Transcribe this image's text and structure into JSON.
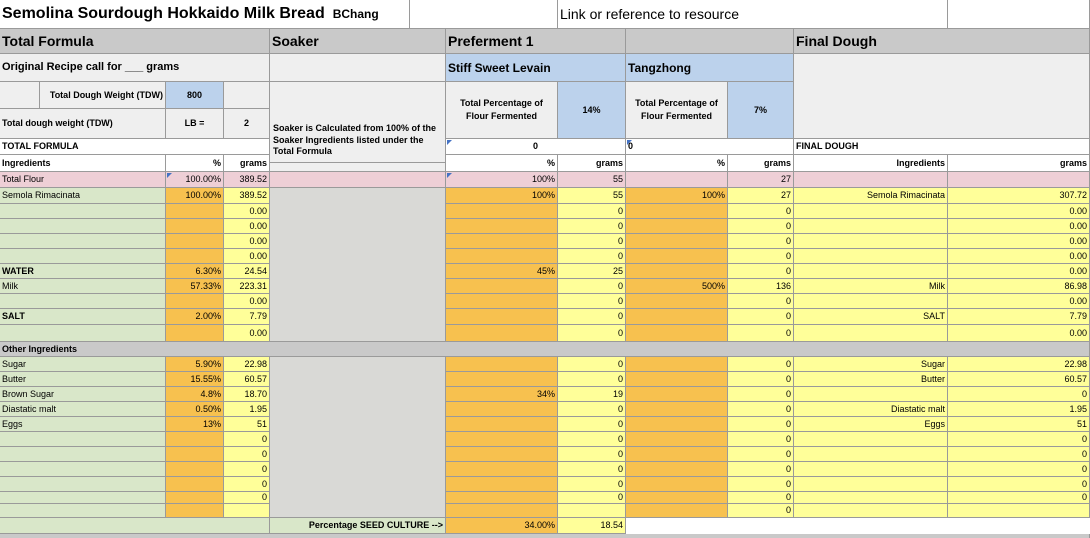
{
  "header": {
    "title": "Semolina Sourdough Hokkaido Milk Bread",
    "author": "BChang",
    "link_label": "Link or reference to resource"
  },
  "sections": {
    "total_formula": "Total Formula",
    "soaker": "Soaker",
    "preferment": "Preferment 1",
    "final_dough": "Final Dough"
  },
  "labels": {
    "original_recipe": "Original Recipe call for ___ grams",
    "stiff_levain": "Stiff Sweet Levain",
    "tangzhong": "Tangzhong",
    "tdw_label": "Total Dough Weight (TDW)",
    "tdw_value": "800",
    "tdw_lb_label": "Total dough weight (TDW)",
    "lb_eq": "LB =",
    "lb_value": "2",
    "pct_flour_fermented": "Total Percentage of Flour Fermented",
    "levain_pct": "14%",
    "tangzhong_pct": "7%",
    "soaker_note": "Soaker is Calculated from 100% of the Soaker Ingredients listed under the Total Formula",
    "total_formula_caps": "TOTAL FORMULA",
    "levain_zero": "0",
    "tangzhong_zero": "0",
    "final_dough_caps": "FINAL DOUGH",
    "ingredients": "Ingredients",
    "pct": "%",
    "grams": "grams",
    "other_ingredients": "Other Ingredients",
    "seed_culture": "Percentage SEED CULTURE  -->",
    "seed_pct": "34.00%",
    "seed_grams": "18.54"
  },
  "rows": [
    {
      "name": "Total Flour",
      "tf_pct": "100.00%",
      "tf_g": "389.52",
      "pf_pct": "100%",
      "pf_g": "55",
      "tz_pct": "",
      "tz_g": "27",
      "fd_name": "",
      "fd_g": ""
    },
    {
      "name": "Semola Rimacinata",
      "tf_pct": "100.00%",
      "tf_g": "389.52",
      "pf_pct": "100%",
      "pf_g": "55",
      "tz_pct": "100%",
      "tz_g": "27",
      "fd_name": "Semola Rimacinata",
      "fd_g": "307.72"
    },
    {
      "name": "",
      "tf_pct": "",
      "tf_g": "0.00",
      "pf_pct": "",
      "pf_g": "0",
      "tz_pct": "",
      "tz_g": "0",
      "fd_name": "",
      "fd_g": "0.00"
    },
    {
      "name": "",
      "tf_pct": "",
      "tf_g": "0.00",
      "pf_pct": "",
      "pf_g": "0",
      "tz_pct": "",
      "tz_g": "0",
      "fd_name": "",
      "fd_g": "0.00"
    },
    {
      "name": "",
      "tf_pct": "",
      "tf_g": "0.00",
      "pf_pct": "",
      "pf_g": "0",
      "tz_pct": "",
      "tz_g": "0",
      "fd_name": "",
      "fd_g": "0.00"
    },
    {
      "name": "",
      "tf_pct": "",
      "tf_g": "0.00",
      "pf_pct": "",
      "pf_g": "0",
      "tz_pct": "",
      "tz_g": "0",
      "fd_name": "",
      "fd_g": "0.00"
    },
    {
      "name": "WATER",
      "tf_pct": "6.30%",
      "tf_g": "24.54",
      "pf_pct": "45%",
      "pf_g": "25",
      "tz_pct": "",
      "tz_g": "0",
      "fd_name": "",
      "fd_g": "0.00"
    },
    {
      "name": "Milk",
      "tf_pct": "57.33%",
      "tf_g": "223.31",
      "pf_pct": "",
      "pf_g": "0",
      "tz_pct": "500%",
      "tz_g": "136",
      "fd_name": "Milk",
      "fd_g": "86.98"
    },
    {
      "name": "",
      "tf_pct": "",
      "tf_g": "0.00",
      "pf_pct": "",
      "pf_g": "0",
      "tz_pct": "",
      "tz_g": "0",
      "fd_name": "",
      "fd_g": "0.00"
    },
    {
      "name": "SALT",
      "tf_pct": "2.00%",
      "tf_g": "7.79",
      "pf_pct": "",
      "pf_g": "0",
      "tz_pct": "",
      "tz_g": "0",
      "fd_name": "SALT",
      "fd_g": "7.79"
    },
    {
      "name": "",
      "tf_pct": "",
      "tf_g": "0.00",
      "pf_pct": "",
      "pf_g": "0",
      "tz_pct": "",
      "tz_g": "0",
      "fd_name": "",
      "fd_g": "0.00"
    },
    {
      "name": "Sugar",
      "tf_pct": "5.90%",
      "tf_g": "22.98",
      "pf_pct": "",
      "pf_g": "0",
      "tz_pct": "",
      "tz_g": "0",
      "fd_name": "Sugar",
      "fd_g": "22.98"
    },
    {
      "name": "Butter",
      "tf_pct": "15.55%",
      "tf_g": "60.57",
      "pf_pct": "",
      "pf_g": "0",
      "tz_pct": "",
      "tz_g": "0",
      "fd_name": "Butter",
      "fd_g": "60.57"
    },
    {
      "name": "Brown Sugar",
      "tf_pct": "4.8%",
      "tf_g": "18.70",
      "pf_pct": "34%",
      "pf_g": "19",
      "tz_pct": "",
      "tz_g": "0",
      "fd_name": "",
      "fd_g": "0"
    },
    {
      "name": "Diastatic malt",
      "tf_pct": "0.50%",
      "tf_g": "1.95",
      "pf_pct": "",
      "pf_g": "0",
      "tz_pct": "",
      "tz_g": "0",
      "fd_name": "Diastatic malt",
      "fd_g": "1.95"
    },
    {
      "name": "Eggs",
      "tf_pct": "13%",
      "tf_g": "51",
      "pf_pct": "",
      "pf_g": "0",
      "tz_pct": "",
      "tz_g": "0",
      "fd_name": "Eggs",
      "fd_g": "51"
    },
    {
      "name": "",
      "tf_pct": "",
      "tf_g": "0",
      "pf_pct": "",
      "pf_g": "0",
      "tz_pct": "",
      "tz_g": "0",
      "fd_name": "",
      "fd_g": "0"
    },
    {
      "name": "",
      "tf_pct": "",
      "tf_g": "0",
      "pf_pct": "",
      "pf_g": "0",
      "tz_pct": "",
      "tz_g": "0",
      "fd_name": "",
      "fd_g": "0"
    },
    {
      "name": "",
      "tf_pct": "",
      "tf_g": "0",
      "pf_pct": "",
      "pf_g": "0",
      "tz_pct": "",
      "tz_g": "0",
      "fd_name": "",
      "fd_g": "0"
    },
    {
      "name": "",
      "tf_pct": "",
      "tf_g": "0",
      "pf_pct": "",
      "pf_g": "0",
      "tz_pct": "",
      "tz_g": "0",
      "fd_name": "",
      "fd_g": "0"
    },
    {
      "name": "",
      "tf_pct": "",
      "tf_g": "0",
      "pf_pct": "",
      "pf_g": "0",
      "tz_pct": "",
      "tz_g": "0",
      "fd_name": "",
      "fd_g": "0"
    },
    {
      "name": "",
      "tf_pct": "",
      "tf_g": "",
      "pf_pct": "",
      "pf_g": "",
      "tz_pct": "",
      "tz_g": "0",
      "fd_name": "",
      "fd_g": ""
    }
  ]
}
